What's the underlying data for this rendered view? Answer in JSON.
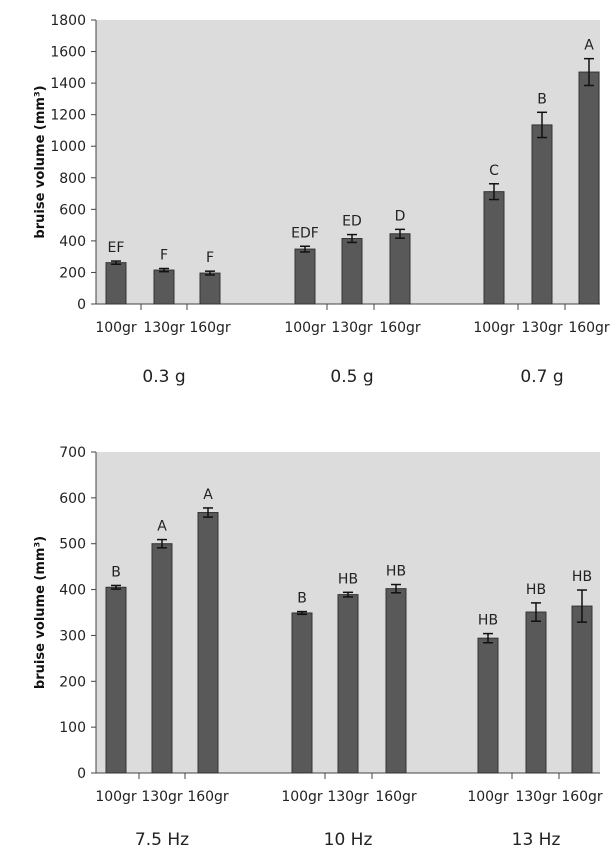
{
  "colors": {
    "plot_background": "#dcdcdc",
    "bar_fill": "#595959",
    "bar_stroke": "#333333",
    "axis": "#444444",
    "error_bar": "#111111"
  },
  "chart_data": [
    {
      "type": "bar",
      "ylabel": "bruise volume (mm³)",
      "ylim": [
        0,
        1800
      ],
      "yticks": [
        0,
        200,
        400,
        600,
        800,
        1000,
        1200,
        1400,
        1600,
        1800
      ],
      "grid": false,
      "groups": [
        {
          "label": "0.3 g",
          "bars": [
            {
              "category": "100gr",
              "value": 262,
              "error": 10,
              "letter": "EF"
            },
            {
              "category": "130gr",
              "value": 215,
              "error": 10,
              "letter": "F"
            },
            {
              "category": "160gr",
              "value": 196,
              "error": 12,
              "letter": "F"
            }
          ]
        },
        {
          "label": "0.5 g",
          "bars": [
            {
              "category": "100gr",
              "value": 348,
              "error": 18,
              "letter": "EDF"
            },
            {
              "category": "130gr",
              "value": 415,
              "error": 25,
              "letter": "ED"
            },
            {
              "category": "160gr",
              "value": 445,
              "error": 28,
              "letter": "D"
            }
          ]
        },
        {
          "label": "0.7 g",
          "bars": [
            {
              "category": "100gr",
              "value": 712,
              "error": 50,
              "letter": "C"
            },
            {
              "category": "130gr",
              "value": 1135,
              "error": 80,
              "letter": "B"
            },
            {
              "category": "160gr",
              "value": 1470,
              "error": 85,
              "letter": "A"
            }
          ]
        }
      ]
    },
    {
      "type": "bar",
      "ylabel": "bruise volume (mm³)",
      "ylim": [
        0,
        700
      ],
      "yticks": [
        0,
        100,
        200,
        300,
        400,
        500,
        600,
        700
      ],
      "grid": false,
      "groups": [
        {
          "label": "7.5 Hz",
          "bars": [
            {
              "category": "100gr",
              "value": 405,
              "error": 4,
              "letter": "B"
            },
            {
              "category": "130gr",
              "value": 500,
              "error": 9,
              "letter": "A"
            },
            {
              "category": "160gr",
              "value": 568,
              "error": 10,
              "letter": "A"
            }
          ]
        },
        {
          "label": "10 Hz",
          "bars": [
            {
              "category": "100gr",
              "value": 349,
              "error": 3,
              "letter": "B"
            },
            {
              "category": "130gr",
              "value": 389,
              "error": 5,
              "letter": "HB"
            },
            {
              "category": "160gr",
              "value": 402,
              "error": 9,
              "letter": "HB"
            }
          ]
        },
        {
          "label": "13 Hz",
          "bars": [
            {
              "category": "100gr",
              "value": 294,
              "error": 10,
              "letter": "HB"
            },
            {
              "category": "130gr",
              "value": 351,
              "error": 20,
              "letter": "HB"
            },
            {
              "category": "160gr",
              "value": 364,
              "error": 35,
              "letter": "HB"
            }
          ]
        }
      ]
    }
  ]
}
